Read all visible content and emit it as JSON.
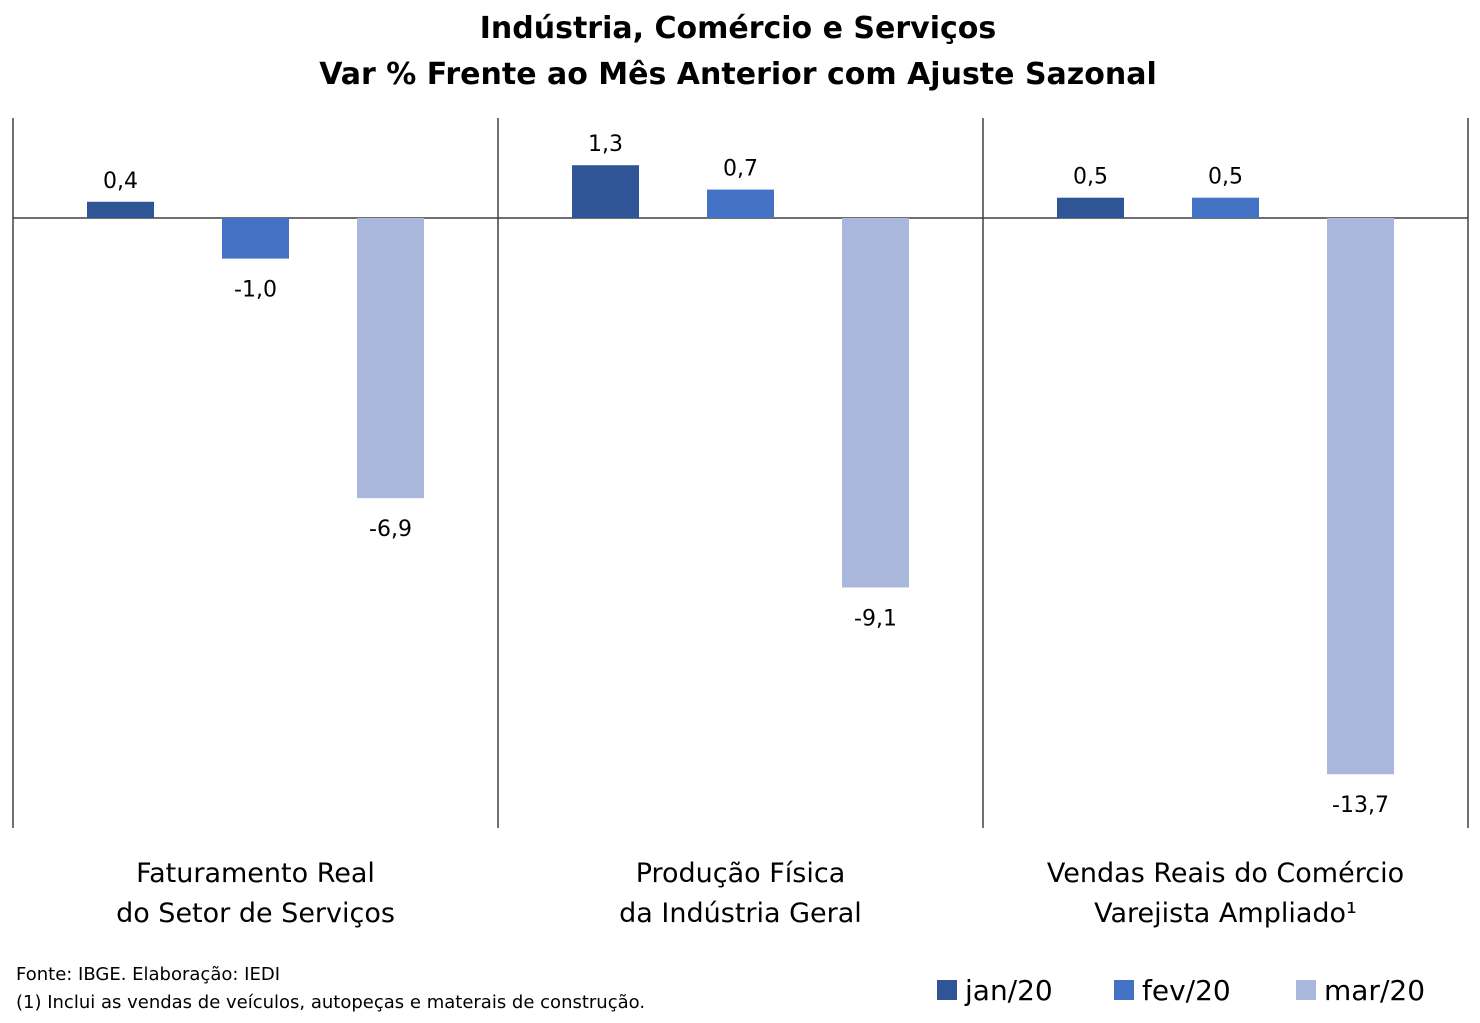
{
  "chart_data": {
    "type": "bar",
    "title": "Indústria, Comércio e Serviços",
    "subtitle": "Var % Frente ao Mês Anterior com Ajuste Sazonal",
    "categories": [
      [
        "Faturamento Real",
        "do Setor de Serviços"
      ],
      [
        "Produção Física",
        "da Indústria Geral"
      ],
      [
        "Vendas Reais do Comércio",
        "Varejista Ampliado¹"
      ]
    ],
    "series": [
      {
        "name": "jan/20",
        "color": "#2f5597",
        "values": [
          0.4,
          1.3,
          0.5
        ],
        "labels": [
          "0,4",
          "1,3",
          "0,5"
        ]
      },
      {
        "name": "fev/20",
        "color": "#4472c4",
        "values": [
          -1.0,
          0.7,
          0.5
        ],
        "labels": [
          "-1,0",
          "0,7",
          "0,5"
        ]
      },
      {
        "name": "mar/20",
        "color": "#a9b7dc",
        "values": [
          -6.9,
          -9.1,
          -13.7
        ],
        "labels": [
          "-6,9",
          "-9,1",
          "-13,7"
        ]
      }
    ],
    "ylim": [
      -15,
      2.5
    ],
    "grid": false,
    "legend": "bottom-right"
  },
  "footnotes": {
    "source": "Fonte: IBGE. Elaboração: IEDI",
    "note": "(1) Inclui as vendas de veículos, autopeças e materais de construção."
  }
}
